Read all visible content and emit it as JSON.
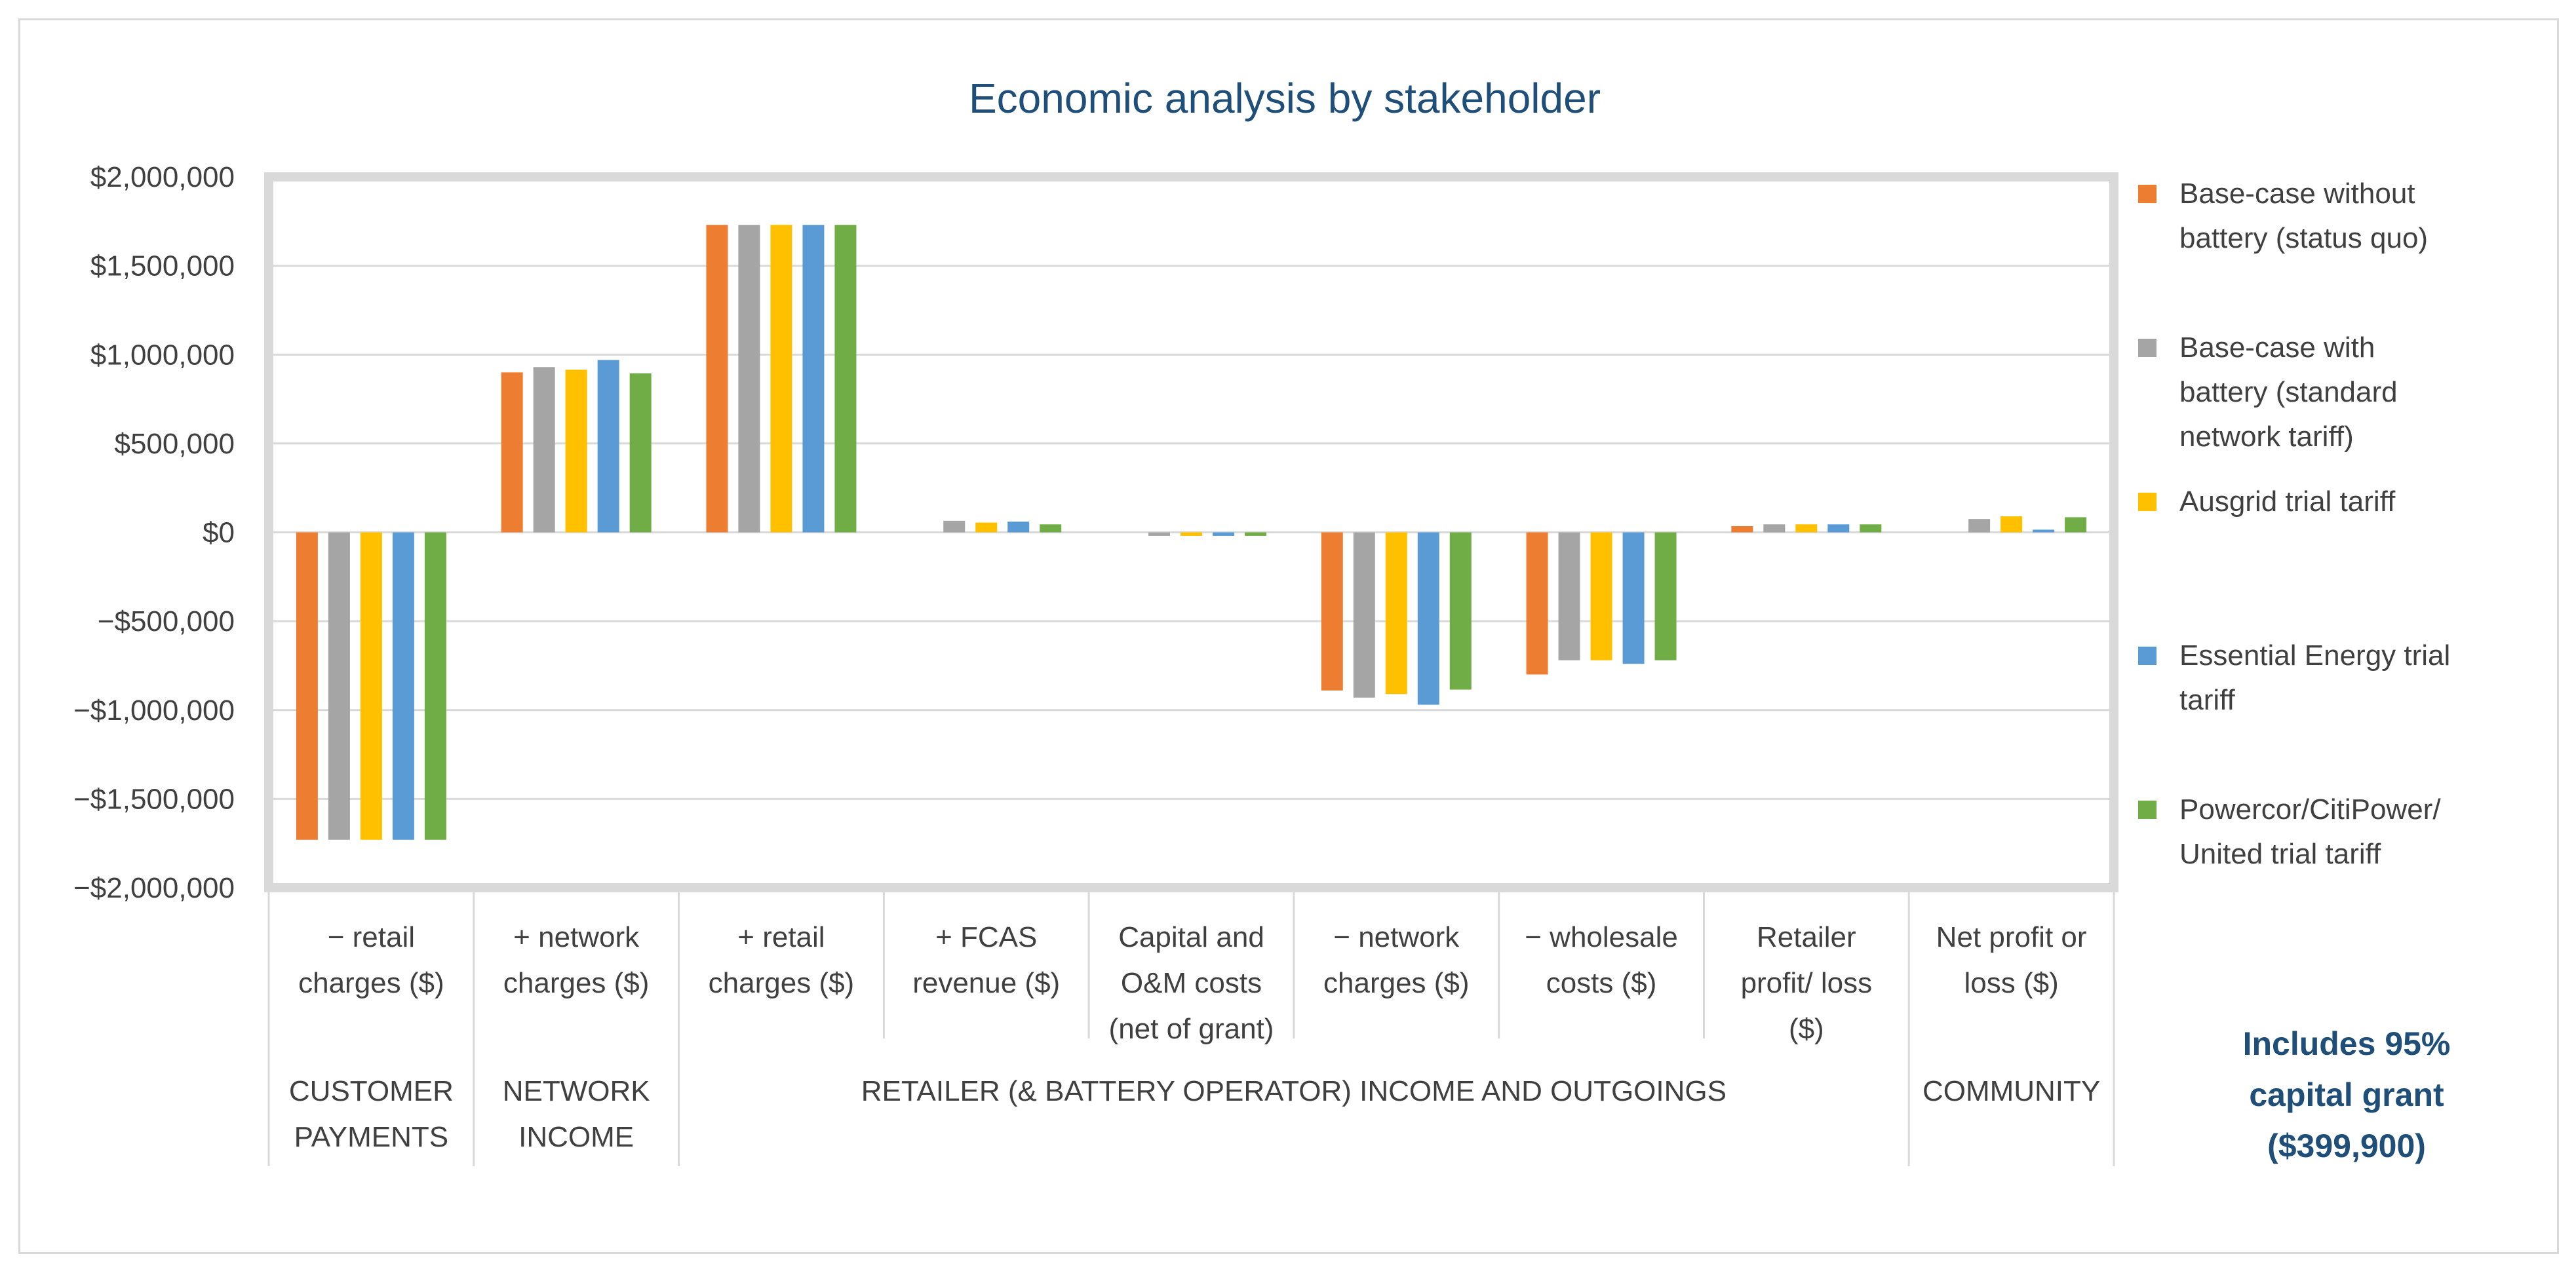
{
  "chart_data": {
    "type": "bar",
    "title": "Economic analysis by stakeholder",
    "xlabel": "",
    "ylabel": "",
    "ylim": [
      -2000000,
      2000000
    ],
    "yticks": [
      2000000,
      1500000,
      1000000,
      500000,
      0,
      -500000,
      -1000000,
      -1500000,
      -2000000
    ],
    "ytick_labels": [
      "$2,000,000",
      "$1,500,000",
      "$1,000,000",
      "$500,000",
      "$0",
      "−$500,000",
      "−$1,000,000",
      "−$1,500,000",
      "−$2,000,000"
    ],
    "grid": true,
    "legend_position": "right",
    "categories": [
      [
        "− retail",
        "charges ($)"
      ],
      [
        "+ network",
        "charges ($)"
      ],
      [
        "+ retail",
        "charges ($)"
      ],
      [
        "+ FCAS",
        "revenue ($)"
      ],
      [
        "Capital and",
        "O&M costs",
        "(net of grant)"
      ],
      [
        "− network",
        "charges ($)"
      ],
      [
        "− wholesale",
        "costs ($)"
      ],
      [
        "Retailer",
        "profit/ loss",
        "($)"
      ],
      [
        "Net profit or",
        "loss ($)"
      ]
    ],
    "groups": [
      {
        "label": [
          "CUSTOMER",
          "PAYMENTS"
        ],
        "span": [
          0,
          0
        ]
      },
      {
        "label": [
          "NETWORK",
          "INCOME"
        ],
        "span": [
          1,
          1
        ]
      },
      {
        "label": [
          "RETAILER (& BATTERY OPERATOR) INCOME AND OUTGOINGS"
        ],
        "span": [
          2,
          7
        ]
      },
      {
        "label": [
          "COMMUNITY"
        ],
        "span": [
          8,
          8
        ]
      }
    ],
    "series": [
      {
        "name": "Base-case without battery (status quo)",
        "legend_lines": [
          "Base-case without",
          "battery (status quo)"
        ],
        "color": "#ed7d31",
        "values": [
          -1730000,
          900000,
          1730000,
          0,
          0,
          -890000,
          -800000,
          35000,
          0
        ]
      },
      {
        "name": "Base-case with battery (standard network tariff)",
        "legend_lines": [
          "Base-case with",
          "battery (standard",
          "network tariff)"
        ],
        "color": "#a5a5a5",
        "values": [
          -1730000,
          930000,
          1730000,
          65000,
          -20000,
          -930000,
          -720000,
          45000,
          75000
        ]
      },
      {
        "name": "Ausgrid trial tariff",
        "legend_lines": [
          "Ausgrid trial tariff"
        ],
        "color": "#ffc000",
        "values": [
          -1730000,
          915000,
          1730000,
          55000,
          -20000,
          -910000,
          -720000,
          45000,
          90000
        ]
      },
      {
        "name": "Essential Energy trial tariff",
        "legend_lines": [
          "Essential Energy trial",
          "tariff"
        ],
        "color": "#5b9bd5",
        "values": [
          -1730000,
          970000,
          1730000,
          60000,
          -20000,
          -970000,
          -740000,
          45000,
          15000
        ]
      },
      {
        "name": "Powercor/CitiPower/United trial tariff",
        "legend_lines": [
          "Powercor/CitiPower/",
          "United trial tariff"
        ],
        "color": "#70ad47",
        "values": [
          -1730000,
          895000,
          1730000,
          45000,
          -20000,
          -885000,
          -720000,
          45000,
          85000
        ]
      }
    ],
    "annotation": [
      "Includes 95%",
      "capital grant",
      "($399,900)"
    ]
  }
}
